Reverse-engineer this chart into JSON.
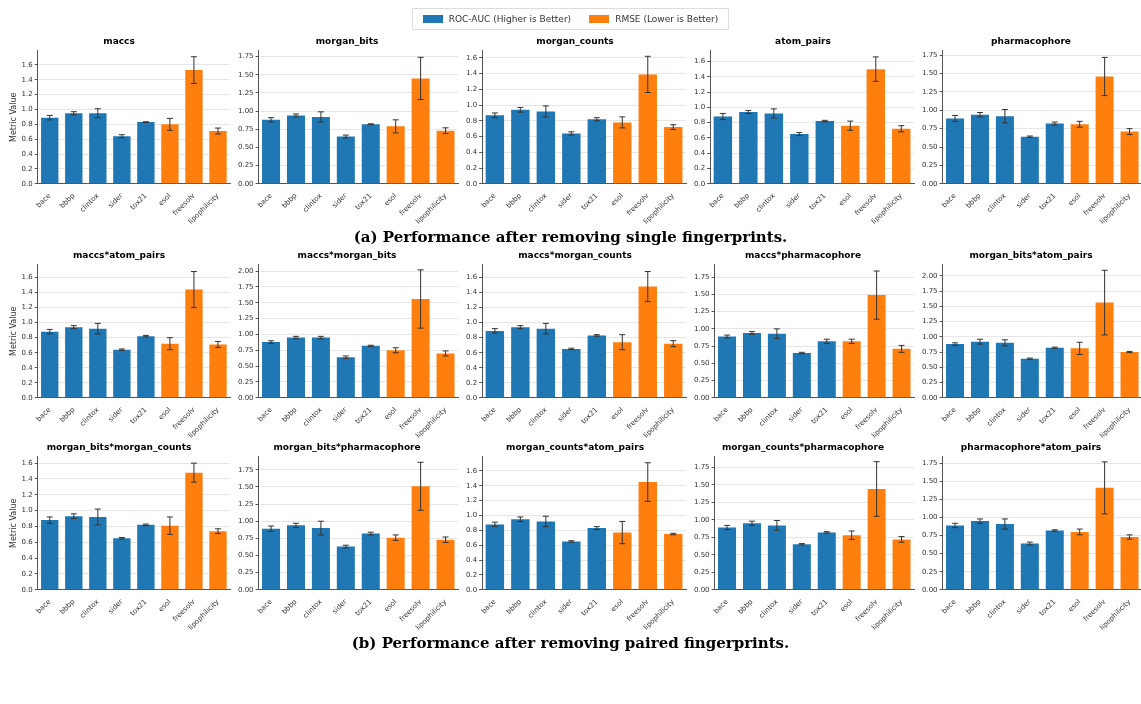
{
  "chart_data": [
    {
      "type": "bar",
      "title": "maccs",
      "ylabel": "Metric Value",
      "legend": "top",
      "grid": "y",
      "categories": [
        "bace",
        "bbbp",
        "clintox",
        "sider",
        "tox21",
        "esol",
        "freesolv",
        "lipophilicity"
      ],
      "ylim": [
        0,
        1.79
      ],
      "yticks": [
        {
          "value": 0,
          "label": "0.0"
        },
        {
          "value": 0.2,
          "label": "0.2"
        },
        {
          "value": 0.4,
          "label": "0.4"
        },
        {
          "value": 0.6,
          "label": "0.6"
        },
        {
          "value": 0.8,
          "label": "0.8"
        },
        {
          "value": 1,
          "label": "1.0"
        },
        {
          "value": 1.2,
          "label": "1.2"
        },
        {
          "value": 1.4,
          "label": "1.4"
        },
        {
          "value": 1.6,
          "label": "1.6"
        }
      ],
      "series": [
        {
          "name": "ROC-AUC (Higher is Better)",
          "color": "#1f77b4",
          "values": [
            0.89,
            0.95,
            0.95,
            0.64,
            0.83,
            null,
            null,
            null
          ],
          "errors": [
            0.03,
            0.02,
            0.06,
            0.02,
            0.005,
            null,
            null,
            null
          ]
        },
        {
          "name": "RMSE (Lower is Better)",
          "color": "#ff7f0e",
          "values": [
            null,
            null,
            null,
            null,
            null,
            0.8,
            1.53,
            0.71
          ],
          "errors": [
            null,
            null,
            null,
            null,
            null,
            0.08,
            0.18,
            0.04
          ]
        }
      ]
    },
    {
      "type": "bar",
      "title": "morgan_bits",
      "grid": "y",
      "categories": [
        "bace",
        "bbbp",
        "clintox",
        "sider",
        "tox21",
        "esol",
        "freesolv",
        "lipophilicity"
      ],
      "ylim": [
        0,
        1.83
      ],
      "yticks": [
        {
          "value": 0,
          "label": "0.00"
        },
        {
          "value": 0.25,
          "label": "0.25"
        },
        {
          "value": 0.5,
          "label": "0.50"
        },
        {
          "value": 0.75,
          "label": "0.75"
        },
        {
          "value": 1,
          "label": "1.00"
        },
        {
          "value": 1.25,
          "label": "1.25"
        },
        {
          "value": 1.5,
          "label": "1.50"
        },
        {
          "value": 1.75,
          "label": "1.75"
        }
      ],
      "series": [
        {
          "color": "#1f77b4",
          "values": [
            0.88,
            0.94,
            0.92,
            0.65,
            0.82,
            null,
            null,
            null
          ],
          "errors": [
            0.03,
            0.02,
            0.07,
            0.02,
            0.005,
            null,
            null,
            null
          ]
        },
        {
          "color": "#ff7f0e",
          "values": [
            null,
            null,
            null,
            null,
            null,
            0.79,
            1.45,
            0.73
          ],
          "errors": [
            null,
            null,
            null,
            null,
            null,
            0.09,
            0.29,
            0.04
          ]
        }
      ]
    },
    {
      "type": "bar",
      "title": "morgan_counts",
      "grid": "y",
      "categories": [
        "bace",
        "bbbp",
        "clintox",
        "sider",
        "tox21",
        "esol",
        "freesolv",
        "lipophilicity"
      ],
      "ylim": [
        0,
        1.69
      ],
      "yticks": [
        {
          "value": 0,
          "label": "0.0"
        },
        {
          "value": 0.2,
          "label": "0.2"
        },
        {
          "value": 0.4,
          "label": "0.4"
        },
        {
          "value": 0.6,
          "label": "0.6"
        },
        {
          "value": 0.8,
          "label": "0.8"
        },
        {
          "value": 1,
          "label": "1.0"
        },
        {
          "value": 1.2,
          "label": "1.2"
        },
        {
          "value": 1.4,
          "label": "1.4"
        },
        {
          "value": 1.6,
          "label": "1.6"
        }
      ],
      "series": [
        {
          "color": "#1f77b4",
          "values": [
            0.87,
            0.94,
            0.92,
            0.64,
            0.82,
            null,
            null,
            null
          ],
          "errors": [
            0.03,
            0.03,
            0.07,
            0.02,
            0.02,
            null,
            null,
            null
          ]
        },
        {
          "color": "#ff7f0e",
          "values": [
            null,
            null,
            null,
            null,
            null,
            0.78,
            1.39,
            0.72
          ],
          "errors": [
            null,
            null,
            null,
            null,
            null,
            0.07,
            0.23,
            0.03
          ]
        }
      ]
    },
    {
      "type": "bar",
      "title": "atom_pairs",
      "grid": "y",
      "categories": [
        "bace",
        "bbbp",
        "clintox",
        "sider",
        "tox21",
        "esol",
        "freesolv",
        "lipophilicity"
      ],
      "ylim": [
        0,
        1.74
      ],
      "yticks": [
        {
          "value": 0,
          "label": "0.0"
        },
        {
          "value": 0.2,
          "label": "0.2"
        },
        {
          "value": 0.4,
          "label": "0.4"
        },
        {
          "value": 0.6,
          "label": "0.6"
        },
        {
          "value": 0.8,
          "label": "0.8"
        },
        {
          "value": 1,
          "label": "1.0"
        },
        {
          "value": 1.2,
          "label": "1.2"
        },
        {
          "value": 1.4,
          "label": "1.4"
        },
        {
          "value": 1.6,
          "label": "1.6"
        }
      ],
      "series": [
        {
          "color": "#1f77b4",
          "values": [
            0.88,
            0.94,
            0.92,
            0.65,
            0.82,
            null,
            null,
            null
          ],
          "errors": [
            0.04,
            0.02,
            0.06,
            0.02,
            0.01,
            null,
            null,
            null
          ]
        },
        {
          "color": "#ff7f0e",
          "values": [
            null,
            null,
            null,
            null,
            null,
            0.76,
            1.5,
            0.72
          ],
          "errors": [
            null,
            null,
            null,
            null,
            null,
            0.06,
            0.16,
            0.04
          ]
        }
      ]
    },
    {
      "type": "bar",
      "title": "pharmacophore",
      "grid": "y",
      "annotations": [
        "(a) Performance after removing single fingerprints."
      ],
      "categories": [
        "bace",
        "bbbp",
        "clintox",
        "sider",
        "tox21",
        "esol",
        "freesolv",
        "lipophilicity"
      ],
      "ylim": [
        0,
        1.81
      ],
      "yticks": [
        {
          "value": 0,
          "label": "0.00"
        },
        {
          "value": 0.25,
          "label": "0.25"
        },
        {
          "value": 0.5,
          "label": "0.50"
        },
        {
          "value": 0.75,
          "label": "0.75"
        },
        {
          "value": 1,
          "label": "1.00"
        },
        {
          "value": 1.25,
          "label": "1.25"
        },
        {
          "value": 1.5,
          "label": "1.50"
        },
        {
          "value": 1.75,
          "label": "1.75"
        }
      ],
      "series": [
        {
          "color": "#1f77b4",
          "values": [
            0.89,
            0.94,
            0.92,
            0.64,
            0.82,
            null,
            null,
            null
          ],
          "errors": [
            0.04,
            0.03,
            0.09,
            0.01,
            0.02,
            null,
            null,
            null
          ]
        },
        {
          "color": "#ff7f0e",
          "values": [
            null,
            null,
            null,
            null,
            null,
            0.81,
            1.46,
            0.71
          ],
          "errors": [
            null,
            null,
            null,
            null,
            null,
            0.04,
            0.26,
            0.04
          ]
        }
      ]
    },
    {
      "type": "bar",
      "title": "maccs*atom_pairs",
      "ylabel": "Metric Value",
      "grid": "y",
      "categories": [
        "bace",
        "bbbp",
        "clintox",
        "sider",
        "tox21",
        "esol",
        "freesolv",
        "lipophilicity"
      ],
      "ylim": [
        0,
        1.77
      ],
      "yticks": [
        {
          "value": 0,
          "label": "0.0"
        },
        {
          "value": 0.2,
          "label": "0.2"
        },
        {
          "value": 0.4,
          "label": "0.4"
        },
        {
          "value": 0.6,
          "label": "0.6"
        },
        {
          "value": 0.8,
          "label": "0.8"
        },
        {
          "value": 1,
          "label": "1.0"
        },
        {
          "value": 1.2,
          "label": "1.2"
        },
        {
          "value": 1.4,
          "label": "1.4"
        },
        {
          "value": 1.6,
          "label": "1.6"
        }
      ],
      "series": [
        {
          "color": "#1f77b4",
          "values": [
            0.88,
            0.94,
            0.92,
            0.64,
            0.82,
            null,
            null,
            null
          ],
          "errors": [
            0.03,
            0.02,
            0.07,
            0.01,
            0.01,
            null,
            null,
            null
          ]
        },
        {
          "color": "#ff7f0e",
          "values": [
            null,
            null,
            null,
            null,
            null,
            0.72,
            1.44,
            0.71
          ],
          "errors": [
            null,
            null,
            null,
            null,
            null,
            0.08,
            0.24,
            0.04
          ]
        }
      ]
    },
    {
      "type": "bar",
      "title": "maccs*morgan_bits",
      "grid": "y",
      "categories": [
        "bace",
        "bbbp",
        "clintox",
        "sider",
        "tox21",
        "esol",
        "freesolv",
        "lipophilicity"
      ],
      "ylim": [
        0,
        2.1
      ],
      "yticks": [
        {
          "value": 0,
          "label": "0.00"
        },
        {
          "value": 0.25,
          "label": "0.25"
        },
        {
          "value": 0.5,
          "label": "0.50"
        },
        {
          "value": 0.75,
          "label": "0.75"
        },
        {
          "value": 1,
          "label": "1.00"
        },
        {
          "value": 1.25,
          "label": "1.25"
        },
        {
          "value": 1.5,
          "label": "1.50"
        },
        {
          "value": 1.75,
          "label": "1.75"
        },
        {
          "value": 2,
          "label": "2.00"
        }
      ],
      "series": [
        {
          "color": "#1f77b4",
          "values": [
            0.88,
            0.95,
            0.95,
            0.64,
            0.82,
            null,
            null,
            null
          ],
          "errors": [
            0.02,
            0.02,
            0.02,
            0.02,
            0.01,
            null,
            null,
            null
          ]
        },
        {
          "color": "#ff7f0e",
          "values": [
            null,
            null,
            null,
            null,
            null,
            0.75,
            1.56,
            0.7
          ],
          "errors": [
            null,
            null,
            null,
            null,
            null,
            0.04,
            0.46,
            0.04
          ]
        }
      ]
    },
    {
      "type": "bar",
      "title": "maccs*morgan_counts",
      "grid": "y",
      "categories": [
        "bace",
        "bbbp",
        "clintox",
        "sider",
        "tox21",
        "esol",
        "freesolv",
        "lipophilicity"
      ],
      "ylim": [
        0,
        1.77
      ],
      "yticks": [
        {
          "value": 0,
          "label": "0.0"
        },
        {
          "value": 0.2,
          "label": "0.2"
        },
        {
          "value": 0.4,
          "label": "0.4"
        },
        {
          "value": 0.6,
          "label": "0.6"
        },
        {
          "value": 0.8,
          "label": "0.8"
        },
        {
          "value": 1,
          "label": "1.0"
        },
        {
          "value": 1.2,
          "label": "1.2"
        },
        {
          "value": 1.4,
          "label": "1.4"
        },
        {
          "value": 1.6,
          "label": "1.6"
        }
      ],
      "series": [
        {
          "color": "#1f77b4",
          "values": [
            0.89,
            0.94,
            0.92,
            0.65,
            0.83,
            null,
            null,
            null
          ],
          "errors": [
            0.03,
            0.02,
            0.07,
            0.01,
            0.01,
            null,
            null,
            null
          ]
        },
        {
          "color": "#ff7f0e",
          "values": [
            null,
            null,
            null,
            null,
            null,
            0.74,
            1.48,
            0.72
          ],
          "errors": [
            null,
            null,
            null,
            null,
            null,
            0.1,
            0.2,
            0.04
          ]
        }
      ]
    },
    {
      "type": "bar",
      "title": "maccs*pharmacophore",
      "grid": "y",
      "categories": [
        "bace",
        "bbbp",
        "clintox",
        "sider",
        "tox21",
        "esol",
        "freesolv",
        "lipophilicity"
      ],
      "ylim": [
        0,
        1.93
      ],
      "yticks": [
        {
          "value": 0,
          "label": "0.00"
        },
        {
          "value": 0.25,
          "label": "0.25"
        },
        {
          "value": 0.5,
          "label": "0.50"
        },
        {
          "value": 0.75,
          "label": "0.75"
        },
        {
          "value": 1,
          "label": "1.00"
        },
        {
          "value": 1.25,
          "label": "1.25"
        },
        {
          "value": 1.5,
          "label": "1.50"
        },
        {
          "value": 1.75,
          "label": "1.75"
        }
      ],
      "series": [
        {
          "color": "#1f77b4",
          "values": [
            0.89,
            0.94,
            0.93,
            0.65,
            0.82,
            null,
            null,
            null
          ],
          "errors": [
            0.02,
            0.02,
            0.07,
            0.01,
            0.03,
            null,
            null,
            null
          ]
        },
        {
          "color": "#ff7f0e",
          "values": [
            null,
            null,
            null,
            null,
            null,
            0.82,
            1.49,
            0.71
          ],
          "errors": [
            null,
            null,
            null,
            null,
            null,
            0.03,
            0.35,
            0.05
          ]
        }
      ]
    },
    {
      "type": "bar",
      "title": "morgan_bits*atom_pairs",
      "grid": "y",
      "categories": [
        "bace",
        "bbbp",
        "clintox",
        "sider",
        "tox21",
        "esol",
        "freesolv",
        "lipophilicity"
      ],
      "ylim": [
        0,
        2.18
      ],
      "yticks": [
        {
          "value": 0,
          "label": "0.00"
        },
        {
          "value": 0.25,
          "label": "0.25"
        },
        {
          "value": 0.5,
          "label": "0.50"
        },
        {
          "value": 0.75,
          "label": "0.75"
        },
        {
          "value": 1,
          "label": "1.00"
        },
        {
          "value": 1.25,
          "label": "1.25"
        },
        {
          "value": 1.5,
          "label": "1.50"
        },
        {
          "value": 1.75,
          "label": "1.75"
        },
        {
          "value": 2,
          "label": "2.00"
        }
      ],
      "series": [
        {
          "color": "#1f77b4",
          "values": [
            0.88,
            0.92,
            0.9,
            0.64,
            0.82,
            null,
            null,
            null
          ],
          "errors": [
            0.02,
            0.04,
            0.05,
            0.01,
            0.01,
            null,
            null,
            null
          ]
        },
        {
          "color": "#ff7f0e",
          "values": [
            null,
            null,
            null,
            null,
            null,
            0.81,
            1.56,
            0.75
          ],
          "errors": [
            null,
            null,
            null,
            null,
            null,
            0.1,
            0.53,
            0.01
          ]
        }
      ]
    },
    {
      "type": "bar",
      "title": "morgan_bits*morgan_counts",
      "ylabel": "Metric Value",
      "grid": "y",
      "categories": [
        "bace",
        "bbbp",
        "clintox",
        "sider",
        "tox21",
        "esol",
        "freesolv",
        "lipophilicity"
      ],
      "ylim": [
        0,
        1.68
      ],
      "yticks": [
        {
          "value": 0,
          "label": "0.0"
        },
        {
          "value": 0.2,
          "label": "0.2"
        },
        {
          "value": 0.4,
          "label": "0.4"
        },
        {
          "value": 0.6,
          "label": "0.6"
        },
        {
          "value": 0.8,
          "label": "0.8"
        },
        {
          "value": 1,
          "label": "1.0"
        },
        {
          "value": 1.2,
          "label": "1.2"
        },
        {
          "value": 1.4,
          "label": "1.4"
        },
        {
          "value": 1.6,
          "label": "1.6"
        }
      ],
      "series": [
        {
          "color": "#1f77b4",
          "values": [
            0.88,
            0.93,
            0.92,
            0.65,
            0.82,
            null,
            null,
            null
          ],
          "errors": [
            0.04,
            0.03,
            0.1,
            0.01,
            0.01,
            null,
            null,
            null
          ]
        },
        {
          "color": "#ff7f0e",
          "values": [
            null,
            null,
            null,
            null,
            null,
            0.81,
            1.48,
            0.74
          ],
          "errors": [
            null,
            null,
            null,
            null,
            null,
            0.11,
            0.12,
            0.03
          ]
        }
      ]
    },
    {
      "type": "bar",
      "title": "morgan_bits*pharmacophore",
      "grid": "y",
      "categories": [
        "bace",
        "bbbp",
        "clintox",
        "sider",
        "tox21",
        "esol",
        "freesolv",
        "lipophilicity"
      ],
      "ylim": [
        0,
        1.94
      ],
      "yticks": [
        {
          "value": 0,
          "label": "0.00"
        },
        {
          "value": 0.25,
          "label": "0.25"
        },
        {
          "value": 0.5,
          "label": "0.50"
        },
        {
          "value": 0.75,
          "label": "0.75"
        },
        {
          "value": 1,
          "label": "1.00"
        },
        {
          "value": 1.25,
          "label": "1.25"
        },
        {
          "value": 1.5,
          "label": "1.50"
        },
        {
          "value": 1.75,
          "label": "1.75"
        }
      ],
      "series": [
        {
          "color": "#1f77b4",
          "values": [
            0.89,
            0.94,
            0.9,
            0.63,
            0.82,
            null,
            null,
            null
          ],
          "errors": [
            0.04,
            0.03,
            0.1,
            0.02,
            0.02,
            null,
            null,
            null
          ]
        },
        {
          "color": "#ff7f0e",
          "values": [
            null,
            null,
            null,
            null,
            null,
            0.76,
            1.51,
            0.73
          ],
          "errors": [
            null,
            null,
            null,
            null,
            null,
            0.04,
            0.35,
            0.04
          ]
        }
      ]
    },
    {
      "type": "bar",
      "title": "morgan_counts*atom_pairs",
      "grid": "y",
      "categories": [
        "bace",
        "bbbp",
        "clintox",
        "sider",
        "tox21",
        "esol",
        "freesolv",
        "lipophilicity"
      ],
      "ylim": [
        0,
        1.79
      ],
      "yticks": [
        {
          "value": 0,
          "label": "0.0"
        },
        {
          "value": 0.2,
          "label": "0.2"
        },
        {
          "value": 0.4,
          "label": "0.4"
        },
        {
          "value": 0.6,
          "label": "0.6"
        },
        {
          "value": 0.8,
          "label": "0.8"
        },
        {
          "value": 1,
          "label": "1.0"
        },
        {
          "value": 1.2,
          "label": "1.2"
        },
        {
          "value": 1.4,
          "label": "1.4"
        },
        {
          "value": 1.6,
          "label": "1.6"
        }
      ],
      "series": [
        {
          "color": "#1f77b4",
          "values": [
            0.88,
            0.95,
            0.92,
            0.65,
            0.83,
            null,
            null,
            null
          ],
          "errors": [
            0.03,
            0.03,
            0.07,
            0.01,
            0.02,
            null,
            null,
            null
          ]
        },
        {
          "color": "#ff7f0e",
          "values": [
            null,
            null,
            null,
            null,
            null,
            0.77,
            1.45,
            0.75
          ],
          "errors": [
            null,
            null,
            null,
            null,
            null,
            0.15,
            0.26,
            0.01
          ]
        }
      ]
    },
    {
      "type": "bar",
      "title": "morgan_counts*pharmacophore",
      "grid": "y",
      "categories": [
        "bace",
        "bbbp",
        "clintox",
        "sider",
        "tox21",
        "esol",
        "freesolv",
        "lipophilicity"
      ],
      "ylim": [
        0,
        1.9
      ],
      "yticks": [
        {
          "value": 0,
          "label": "0.00"
        },
        {
          "value": 0.25,
          "label": "0.25"
        },
        {
          "value": 0.5,
          "label": "0.50"
        },
        {
          "value": 0.75,
          "label": "0.75"
        },
        {
          "value": 1,
          "label": "1.00"
        },
        {
          "value": 1.25,
          "label": "1.25"
        },
        {
          "value": 1.5,
          "label": "1.50"
        },
        {
          "value": 1.75,
          "label": "1.75"
        }
      ],
      "series": [
        {
          "color": "#1f77b4",
          "values": [
            0.89,
            0.95,
            0.92,
            0.65,
            0.82,
            null,
            null,
            null
          ],
          "errors": [
            0.03,
            0.03,
            0.07,
            0.01,
            0.01,
            null,
            null,
            null
          ]
        },
        {
          "color": "#ff7f0e",
          "values": [
            null,
            null,
            null,
            null,
            null,
            0.78,
            1.44,
            0.72
          ],
          "errors": [
            null,
            null,
            null,
            null,
            null,
            0.06,
            0.39,
            0.04
          ]
        }
      ]
    },
    {
      "type": "bar",
      "title": "pharmacophore*atom_pairs",
      "grid": "y",
      "annotations": [
        "(b) Performance after removing paired fingerprints."
      ],
      "categories": [
        "bace",
        "bbbp",
        "clintox",
        "sider",
        "tox21",
        "esol",
        "freesolv",
        "lipophilicity"
      ],
      "ylim": [
        0,
        1.84
      ],
      "yticks": [
        {
          "value": 0,
          "label": "0.00"
        },
        {
          "value": 0.25,
          "label": "0.25"
        },
        {
          "value": 0.5,
          "label": "0.50"
        },
        {
          "value": 0.75,
          "label": "0.75"
        },
        {
          "value": 1,
          "label": "1.00"
        },
        {
          "value": 1.25,
          "label": "1.25"
        },
        {
          "value": 1.5,
          "label": "1.50"
        },
        {
          "value": 1.75,
          "label": "1.75"
        }
      ],
      "series": [
        {
          "color": "#1f77b4",
          "values": [
            0.89,
            0.95,
            0.91,
            0.64,
            0.82,
            null,
            null,
            null
          ],
          "errors": [
            0.03,
            0.03,
            0.07,
            0.02,
            0.01,
            null,
            null,
            null
          ]
        },
        {
          "color": "#ff7f0e",
          "values": [
            null,
            null,
            null,
            null,
            null,
            0.8,
            1.41,
            0.73
          ],
          "errors": [
            null,
            null,
            null,
            null,
            null,
            0.04,
            0.36,
            0.03
          ]
        }
      ]
    }
  ]
}
